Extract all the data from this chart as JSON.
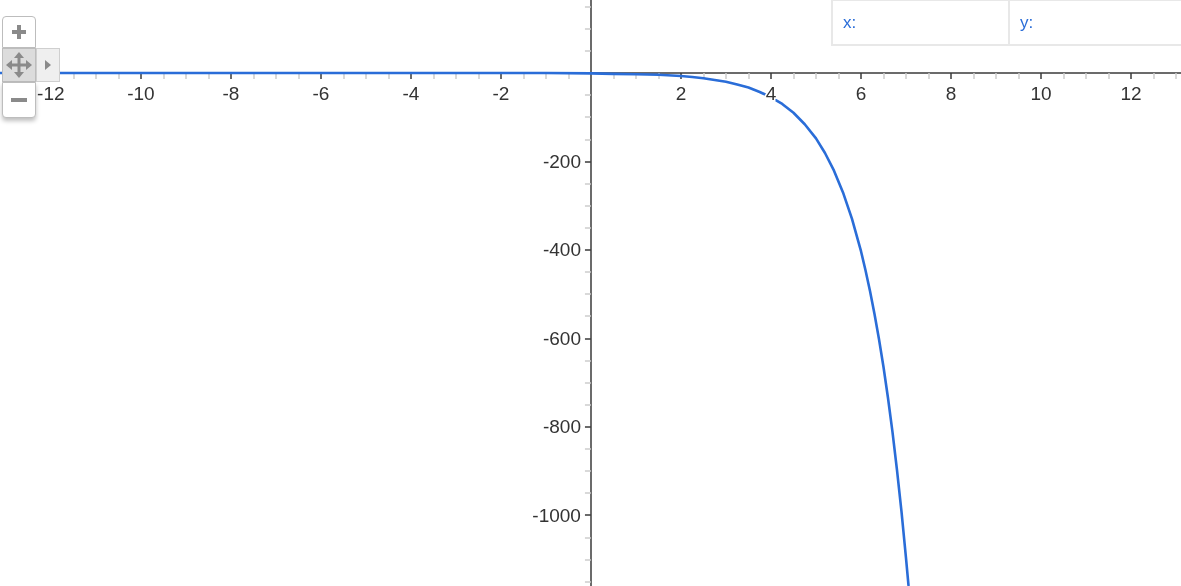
{
  "chart_data": {
    "type": "line",
    "x": [
      -13.13,
      -10,
      -8,
      -6,
      -4,
      -3,
      -2,
      -1,
      0,
      0.5,
      1,
      1.5,
      2,
      2.25,
      2.5,
      2.75,
      3,
      3.25,
      3.5,
      3.75,
      4,
      4.25,
      4.5,
      4.75,
      5,
      5.2,
      5.4,
      5.6,
      5.8,
      6,
      6.1,
      6.2,
      6.3,
      6.4,
      6.5,
      6.6,
      6.7,
      6.8,
      6.9,
      7,
      7.055
    ],
    "series": [
      {
        "color": "#2a6dd8",
        "values": [
          0,
          0,
          0,
          0,
          0,
          0,
          0,
          0,
          -1,
          -2,
          -3,
          -4,
          -7,
          -9,
          -12,
          -16,
          -20,
          -26,
          -33,
          -43,
          -55,
          -70,
          -90,
          -116,
          -148,
          -181,
          -221,
          -270,
          -330,
          -403,
          -446,
          -493,
          -545,
          -602,
          -665,
          -735,
          -812,
          -898,
          -992,
          -1097,
          -1158
        ]
      }
    ],
    "xlim": [
      -13.13,
      13.11
    ],
    "ylim": [
      -1160,
      165
    ],
    "xticks": [
      -12,
      -10,
      -8,
      -6,
      -4,
      -2,
      2,
      4,
      6,
      8,
      10,
      12,
      {
        "value": -13,
        "label": null
      },
      {
        "value": -12.5,
        "label": null
      },
      {
        "value": -11.5,
        "label": null
      },
      {
        "value": -11,
        "label": null
      },
      {
        "value": -10.5,
        "label": null
      },
      {
        "value": -9.5,
        "label": null
      },
      {
        "value": -9,
        "label": null
      },
      {
        "value": -8.5,
        "label": null
      },
      {
        "value": -7.5,
        "label": null
      },
      {
        "value": -7,
        "label": null
      },
      {
        "value": -6.5,
        "label": null
      },
      {
        "value": -5.5,
        "label": null
      },
      {
        "value": -5,
        "label": null
      },
      {
        "value": -4.5,
        "label": null
      },
      {
        "value": -3.5,
        "label": null
      },
      {
        "value": -3,
        "label": null
      },
      {
        "value": -2.5,
        "label": null
      },
      {
        "value": -1.5,
        "label": null
      },
      {
        "value": -1,
        "label": null
      },
      {
        "value": -0.5,
        "label": null
      },
      {
        "value": 0.5,
        "label": null
      },
      {
        "value": 1,
        "label": null
      },
      {
        "value": 1.5,
        "label": null
      },
      {
        "value": 2.5,
        "label": null
      },
      {
        "value": 3,
        "label": null
      },
      {
        "value": 3.5,
        "label": null
      },
      {
        "value": 4.5,
        "label": null
      },
      {
        "value": 5,
        "label": null
      },
      {
        "value": 5.5,
        "label": null
      },
      {
        "value": 6.5,
        "label": null
      },
      {
        "value": 7,
        "label": null
      },
      {
        "value": 7.5,
        "label": null
      },
      {
        "value": 8.5,
        "label": null
      },
      {
        "value": 9,
        "label": null
      },
      {
        "value": 9.5,
        "label": null
      },
      {
        "value": 10.5,
        "label": null
      },
      {
        "value": 11,
        "label": null
      },
      {
        "value": 11.5,
        "label": null
      },
      {
        "value": 12.5,
        "label": null
      },
      {
        "value": 13,
        "label": null
      }
    ],
    "yticks": [
      -1000,
      -800,
      -600,
      -400,
      -200,
      {
        "value": -1150,
        "label": null
      },
      {
        "value": -1100,
        "label": null
      },
      {
        "value": -1050,
        "label": null
      },
      {
        "value": -950,
        "label": null
      },
      {
        "value": -900,
        "label": null
      },
      {
        "value": -850,
        "label": null
      },
      {
        "value": -750,
        "label": null
      },
      {
        "value": -700,
        "label": null
      },
      {
        "value": -650,
        "label": null
      },
      {
        "value": -550,
        "label": null
      },
      {
        "value": -500,
        "label": null
      },
      {
        "value": -450,
        "label": null
      },
      {
        "value": -350,
        "label": null
      },
      {
        "value": -300,
        "label": null
      },
      {
        "value": -250,
        "label": null
      },
      {
        "value": -150,
        "label": null
      },
      {
        "value": -100,
        "label": null
      },
      {
        "value": -50,
        "label": null
      },
      {
        "value": 50,
        "label": null
      },
      {
        "value": 100,
        "label": null
      },
      {
        "value": 150,
        "label": null
      }
    ],
    "grid": false,
    "marker": "none",
    "line_style": "solid",
    "annotations": [
      "x:",
      "y:"
    ]
  }
}
